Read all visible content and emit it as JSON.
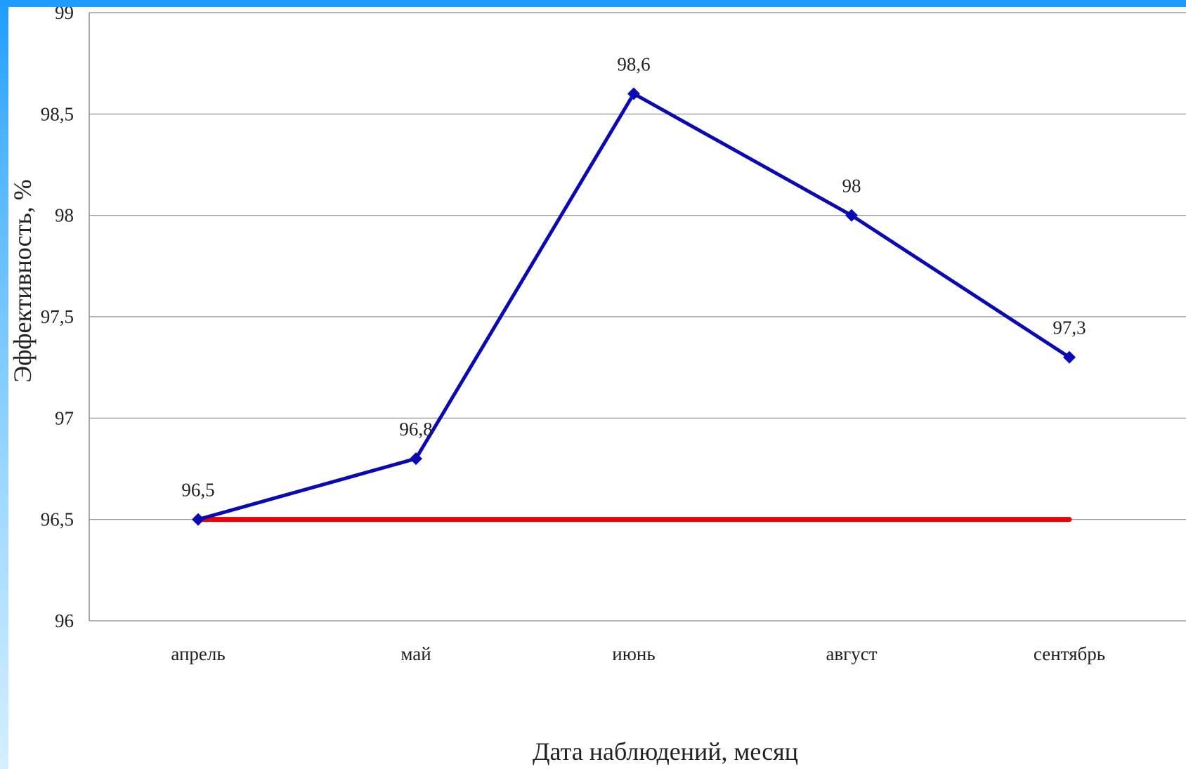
{
  "chart_data": {
    "type": "line",
    "title": "",
    "xlabel": "Дата наблюдений, месяц",
    "ylabel": "Эффективность, %",
    "categories": [
      "апрель",
      "май",
      "июнь",
      "август",
      "сентябрь"
    ],
    "ylim": [
      96,
      99
    ],
    "yticks": [
      "96",
      "96,5",
      "97",
      "97,5",
      "98",
      "98,5",
      "99"
    ],
    "ytick_values": [
      96,
      96.5,
      97,
      97.5,
      98,
      98.5,
      99
    ],
    "grid": true,
    "legend": "none",
    "series": [
      {
        "values": [
          96.5,
          96.8,
          98.6,
          98.0,
          97.3
        ],
        "data_labels": [
          "96,5",
          "96,8",
          "98,6",
          "98",
          "97,3"
        ],
        "color": "#0a0ab4",
        "marker": "diamond"
      },
      {
        "values": [
          96.5,
          96.5,
          96.5,
          96.5,
          96.5
        ],
        "color": "#ee0000",
        "marker": "none"
      }
    ]
  }
}
